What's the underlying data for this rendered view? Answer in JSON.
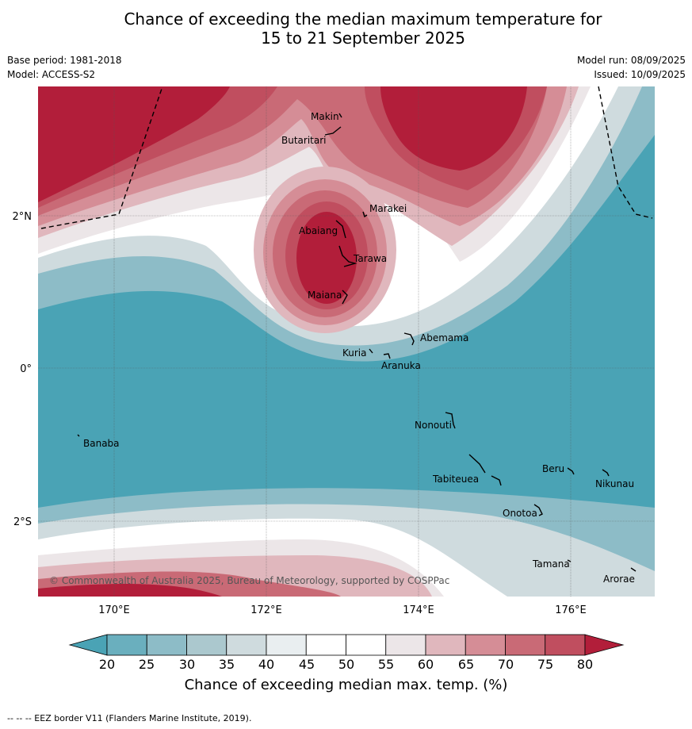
{
  "title_line1": "Chance of exceeding the median maximum temperature for",
  "title_line2": "15 to 21 September 2025",
  "base_period": "Base period: 1981-2018",
  "model": "Model: ACCESS-S2",
  "model_run": "Model run: 08/09/2025",
  "issued": "Issued: 10/09/2025",
  "copyright": "© Commonwealth of Australia 2025, Bureau of Meteorology, supported by COSPPac",
  "lat_labels": [
    "2°N",
    "0°",
    "2°S"
  ],
  "lon_labels": [
    "170°E",
    "172°E",
    "174°E",
    "176°E"
  ],
  "places": [
    "Makin",
    "Butaritari",
    "Marakei",
    "Abaiang",
    "Tarawa",
    "Maiana",
    "Abemama",
    "Kuria",
    "Aranuka",
    "Banaba",
    "Nonouti",
    "Tabiteuea",
    "Beru",
    "Nikunau",
    "Onotoa",
    "Tamana",
    "Arorae"
  ],
  "colorbar": {
    "ticks": [
      "20",
      "25",
      "30",
      "35",
      "40",
      "45",
      "50",
      "55",
      "60",
      "65",
      "70",
      "75",
      "80"
    ],
    "label": "Chance of exceeding median max. temp. (%)",
    "colors": [
      "#4aa3b5",
      "#6aafbe",
      "#8dbcc7",
      "#abc8ce",
      "#cfdbde",
      "#e9eef0",
      "#ffffff",
      "#ffffff",
      "#ece6e8",
      "#e0b7bd",
      "#d58d96",
      "#c96a76",
      "#c04e5f",
      "#b21e3a"
    ]
  },
  "footer": "--  --  -- EEZ border V11 (Flanders Marine Institute, 2019)."
}
